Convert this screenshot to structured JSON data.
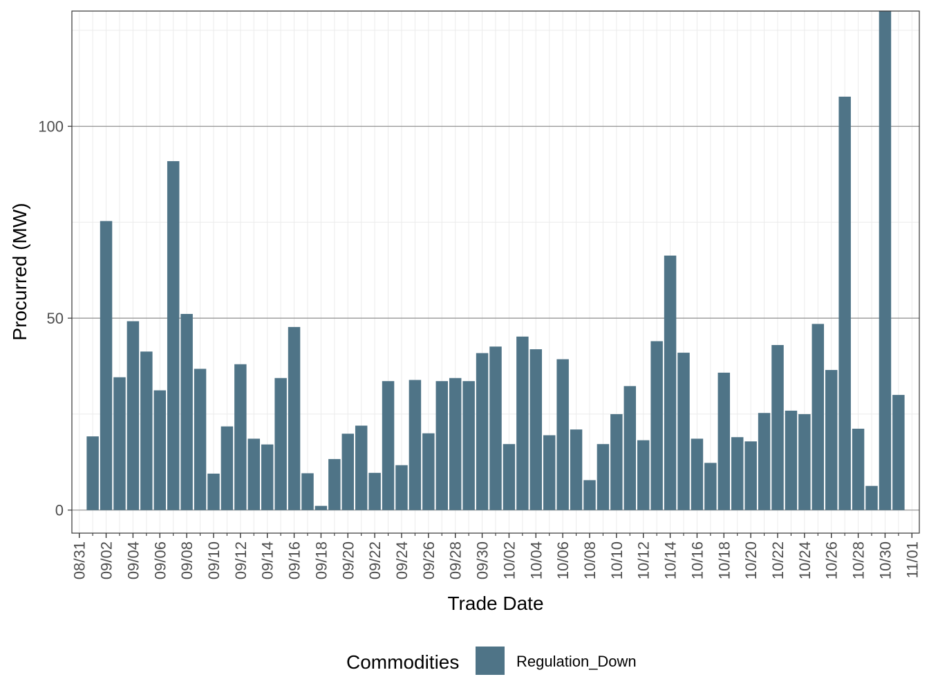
{
  "chart_data": {
    "type": "bar",
    "xlabel": "Trade Date",
    "ylabel": "Procurred (MW)",
    "ylim": [
      -6,
      130
    ],
    "yticks": [
      0,
      50,
      100
    ],
    "ytick_labels": [
      "0",
      "50",
      "100"
    ],
    "xticks": [
      "08/31",
      "09/02",
      "09/04",
      "09/06",
      "09/08",
      "09/10",
      "09/12",
      "09/14",
      "09/16",
      "09/18",
      "09/20",
      "09/22",
      "09/24",
      "09/26",
      "09/28",
      "09/30",
      "10/02",
      "10/04",
      "10/06",
      "10/08",
      "10/10",
      "10/12",
      "10/14",
      "10/16",
      "10/18",
      "10/20",
      "10/22",
      "10/24",
      "10/26",
      "10/28",
      "10/30",
      "11/01"
    ],
    "grid": true,
    "legend_position": "bottom",
    "legend_title": "Commodities",
    "bar_color": "#4f7487",
    "categories": [
      "09/01",
      "09/02",
      "09/03",
      "09/04",
      "09/05",
      "09/06",
      "09/07",
      "09/08",
      "09/09",
      "09/10",
      "09/11",
      "09/12",
      "09/13",
      "09/14",
      "09/15",
      "09/16",
      "09/17",
      "09/18",
      "09/19",
      "09/20",
      "09/21",
      "09/22",
      "09/23",
      "09/24",
      "09/25",
      "09/26",
      "09/27",
      "09/28",
      "09/29",
      "09/30",
      "10/01",
      "10/02",
      "10/03",
      "10/04",
      "10/05",
      "10/06",
      "10/07",
      "10/08",
      "10/09",
      "10/10",
      "10/11",
      "10/12",
      "10/13",
      "10/14",
      "10/15",
      "10/16",
      "10/17",
      "10/18",
      "10/19",
      "10/20",
      "10/21",
      "10/22",
      "10/23",
      "10/24",
      "10/25",
      "10/26",
      "10/27",
      "10/28",
      "10/29",
      "10/30",
      "10/31"
    ],
    "series": [
      {
        "name": "Regulation_Down",
        "color": "#4f7487",
        "values": [
          19.2,
          75.3,
          34.6,
          49.2,
          41.3,
          31.2,
          90.9,
          51.1,
          36.8,
          9.5,
          21.8,
          38.0,
          18.6,
          17.1,
          34.4,
          47.7,
          9.6,
          1.1,
          13.3,
          19.9,
          22.0,
          9.7,
          33.6,
          11.7,
          33.9,
          20.0,
          33.6,
          34.4,
          33.6,
          40.9,
          42.6,
          17.2,
          45.2,
          41.9,
          19.5,
          39.3,
          21.0,
          7.8,
          17.2,
          25.0,
          32.3,
          18.2,
          44.0,
          66.3,
          41.0,
          18.6,
          12.3,
          35.8,
          19.0,
          17.9,
          25.3,
          43.0,
          25.9,
          25.0,
          48.5,
          36.5,
          107.7,
          21.2,
          6.3,
          130.1,
          30.0
        ]
      }
    ]
  }
}
